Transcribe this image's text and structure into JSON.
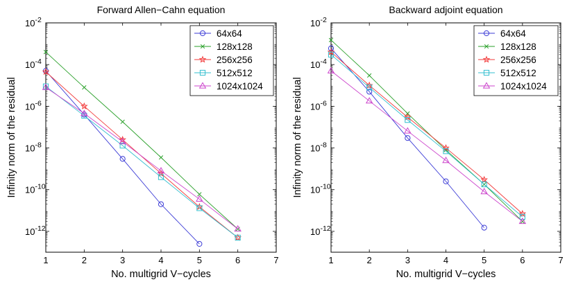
{
  "chart_data": [
    {
      "type": "line",
      "title": "Forward Allen−Cahn equation",
      "xlabel": "No. multigrid V−cycles",
      "ylabel": "Infinity norm of the residual",
      "yscale": "log",
      "xlim": [
        1,
        7
      ],
      "ylim_exp": [
        -13,
        -2
      ],
      "xticks": [
        "1",
        "2",
        "3",
        "4",
        "5",
        "6",
        "7"
      ],
      "yticks": [
        {
          "base": "10",
          "exp": "-12",
          "e": -12
        },
        {
          "base": "10",
          "exp": "-10",
          "e": -10
        },
        {
          "base": "10",
          "exp": "-8",
          "e": -8
        },
        {
          "base": "10",
          "exp": "-6",
          "e": -6
        },
        {
          "base": "10",
          "exp": "-4",
          "e": -4
        },
        {
          "base": "10",
          "exp": "-2",
          "e": -2
        }
      ],
      "legend_position": "top-right",
      "series": [
        {
          "name": "64x64",
          "color": "#3b3bd6",
          "marker": "circle",
          "x": [
            1,
            2,
            3,
            4,
            5
          ],
          "values": [
            5e-05,
            4e-07,
            3e-09,
            2e-11,
            2.5e-13
          ]
        },
        {
          "name": "128x128",
          "color": "#2aa02a",
          "marker": "x",
          "x": [
            1,
            2,
            3,
            4,
            5,
            6
          ],
          "values": [
            0.0004,
            8e-06,
            1.8e-07,
            3.5e-09,
            6e-11,
            1.3e-12
          ]
        },
        {
          "name": "256x256",
          "color": "#f23a3a",
          "marker": "star",
          "x": [
            1,
            2,
            3,
            4,
            5,
            6
          ],
          "values": [
            4.5e-05,
            1e-06,
            2.5e-08,
            6e-10,
            1.5e-11,
            5e-13
          ]
        },
        {
          "name": "512x512",
          "color": "#33bfcf",
          "marker": "square",
          "x": [
            1,
            2,
            3,
            4,
            5,
            6
          ],
          "values": [
            9e-06,
            3.5e-07,
            1.3e-08,
            4e-10,
            1.3e-11,
            5e-13
          ]
        },
        {
          "name": "1024x1024",
          "color": "#cc44cc",
          "marker": "triangle",
          "x": [
            1,
            2,
            3,
            4,
            5,
            6
          ],
          "values": [
            8e-06,
            4.5e-07,
            2e-08,
            8e-10,
            3.5e-11,
            1.3e-12
          ]
        }
      ]
    },
    {
      "type": "line",
      "title": "Backward adjoint equation",
      "xlabel": "No. multigrid V−cycles",
      "ylabel": "Infinity norm of the residual",
      "yscale": "log",
      "xlim": [
        1,
        7
      ],
      "ylim_exp": [
        -13,
        -2
      ],
      "xticks": [
        "1",
        "2",
        "3",
        "4",
        "5",
        "6",
        "7"
      ],
      "yticks": [
        {
          "base": "10",
          "exp": "-12",
          "e": -12
        },
        {
          "base": "10",
          "exp": "-10",
          "e": -10
        },
        {
          "base": "10",
          "exp": "-8",
          "e": -8
        },
        {
          "base": "10",
          "exp": "-6",
          "e": -6
        },
        {
          "base": "10",
          "exp": "-4",
          "e": -4
        },
        {
          "base": "10",
          "exp": "-2",
          "e": -2
        }
      ],
      "legend_position": "top-right",
      "series": [
        {
          "name": "64x64",
          "color": "#3b3bd6",
          "marker": "circle",
          "x": [
            1,
            2,
            3,
            4,
            5
          ],
          "values": [
            0.0006,
            5e-06,
            3e-08,
            2.5e-10,
            1.5e-12
          ]
        },
        {
          "name": "128x128",
          "color": "#2aa02a",
          "marker": "x",
          "x": [
            1,
            2,
            3,
            4,
            5,
            6
          ],
          "values": [
            0.0015,
            3e-05,
            4.5e-07,
            8e-09,
            1.8e-10,
            3e-12
          ]
        },
        {
          "name": "256x256",
          "color": "#f23a3a",
          "marker": "star",
          "x": [
            1,
            2,
            3,
            4,
            5,
            6
          ],
          "values": [
            0.0004,
            1e-05,
            3e-07,
            1e-08,
            3e-10,
            7e-12
          ]
        },
        {
          "name": "512x512",
          "color": "#33bfcf",
          "marker": "square",
          "x": [
            1,
            2,
            3,
            4,
            5,
            6
          ],
          "values": [
            0.0003,
            8e-06,
            2.2e-07,
            7e-09,
            1.8e-10,
            5e-12
          ]
        },
        {
          "name": "1024x1024",
          "color": "#cc44cc",
          "marker": "triangle",
          "x": [
            1,
            2,
            3,
            4,
            5,
            6
          ],
          "values": [
            5e-05,
            1.8e-06,
            6.5e-08,
            2.5e-09,
            8e-11,
            3e-12
          ]
        }
      ]
    }
  ]
}
